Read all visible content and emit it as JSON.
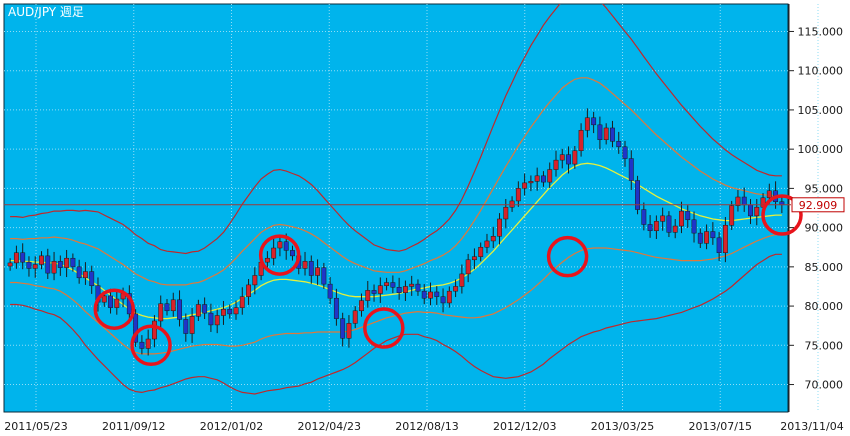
{
  "chart_data": {
    "type": "candlestick",
    "title": "AUD/JPY  週足",
    "ylim": [
      66.5,
      118.5
    ],
    "y_ticks": [
      "115.000",
      "110.000",
      "105.000",
      "100.000",
      "95.000",
      "90.000",
      "85.000",
      "80.000",
      "75.000",
      "70.000"
    ],
    "y_tick_values": [
      115,
      110,
      105,
      100,
      95,
      90,
      85,
      80,
      75,
      70
    ],
    "x_ticks": [
      "2011/05/23",
      "2011/09/12",
      "2012/01/02",
      "2012/04/23",
      "2012/08/13",
      "2012/12/03",
      "2013/03/25",
      "2013/07/15",
      "2013/11/04"
    ],
    "last_price": 92.909,
    "last_price_label": "92.909",
    "grid": true,
    "colors": {
      "background": "#00b4ec",
      "up": "#d8232a",
      "down": "#1f35c8",
      "middle_band": "#e6f03c",
      "inner_band": "#e0783a",
      "outer_band": "#c0282a",
      "price_line": "#9a3a3a",
      "circle": "#e8141c"
    },
    "series": [
      {
        "name": "",
        "values": [],
        "kind": "candles"
      }
    ],
    "candles_close": [
      85.5,
      86.8,
      85.6,
      84.8,
      85.3,
      86.4,
      84.2,
      85.7,
      84.9,
      86.1,
      85.0,
      83.6,
      84.4,
      82.6,
      80.5,
      81.3,
      79.8,
      80.9,
      81.6,
      79.0,
      75.4,
      74.6,
      75.8,
      78.1,
      80.3,
      79.4,
      80.8,
      78.3,
      76.5,
      78.7,
      80.2,
      79.1,
      77.6,
      78.8,
      79.6,
      79.0,
      79.8,
      81.2,
      82.7,
      83.9,
      85.6,
      86.1,
      87.4,
      88.2,
      87.1,
      86.4,
      84.8,
      85.7,
      83.9,
      84.9,
      82.8,
      81.0,
      78.4,
      75.9,
      77.8,
      79.4,
      80.7,
      82.0,
      81.6,
      82.6,
      83.0,
      82.4,
      81.7,
      82.5,
      82.8,
      81.9,
      81.0,
      81.8,
      81.2,
      80.4,
      81.9,
      82.5,
      84.1,
      85.9,
      86.3,
      87.5,
      88.3,
      88.9,
      91.1,
      92.6,
      93.4,
      95.0,
      95.7,
      95.9,
      96.6,
      95.8,
      97.4,
      98.6,
      99.3,
      98.1,
      99.8,
      102.4,
      104.0,
      103.1,
      101.2,
      102.7,
      101.0,
      100.3,
      98.8,
      96.0,
      92.3,
      90.4,
      89.6,
      90.8,
      91.5,
      89.4,
      90.2,
      92.1,
      91.0,
      89.3,
      88.0,
      89.5,
      88.7,
      86.8,
      90.3,
      92.8,
      93.9,
      92.9,
      91.5,
      92.6,
      93.8,
      94.7,
      93.3,
      92.909
    ],
    "bollinger_mid": [
      85.8,
      85.8,
      85.7,
      85.7,
      85.6,
      85.6,
      85.5,
      85.5,
      85.3,
      85.0,
      84.6,
      84.1,
      83.6,
      83.1,
      82.6,
      82.0,
      81.4,
      80.8,
      80.2,
      79.6,
      79.1,
      78.8,
      78.6,
      78.5,
      78.4,
      78.4,
      78.5,
      78.6,
      78.7,
      78.9,
      79.0,
      79.2,
      79.4,
      79.6,
      79.8,
      80.1,
      80.5,
      81.0,
      81.5,
      82.0,
      82.6,
      83.0,
      83.3,
      83.4,
      83.4,
      83.3,
      83.2,
      83.1,
      82.9,
      82.7,
      82.4,
      82.1,
      81.8,
      81.5,
      81.3,
      81.2,
      81.2,
      81.2,
      81.2,
      81.3,
      81.4,
      81.5,
      81.6,
      81.8,
      82.0,
      82.2,
      82.3,
      82.5,
      82.6,
      82.7,
      82.9,
      83.2,
      83.6,
      84.1,
      84.7,
      85.4,
      86.2,
      87.0,
      87.9,
      88.8,
      89.7,
      90.6,
      91.5,
      92.4,
      93.3,
      94.2,
      95.1,
      95.9,
      96.7,
      97.3,
      97.8,
      98.1,
      98.2,
      98.1,
      97.9,
      97.6,
      97.2,
      96.8,
      96.4,
      96.0,
      95.5,
      95.0,
      94.5,
      94.0,
      93.6,
      93.2,
      92.8,
      92.4,
      92.1,
      91.8,
      91.5,
      91.3,
      91.1,
      91.0,
      90.9,
      90.9,
      91.0,
      91.1,
      91.2,
      91.3,
      91.4,
      91.5,
      91.6,
      91.6
    ],
    "bollinger_band_width_1": [
      2.8,
      2.8,
      2.8,
      2.9,
      3.0,
      3.1,
      3.2,
      3.3,
      3.4,
      3.6,
      3.8,
      4.0,
      4.3,
      4.5,
      4.7,
      4.8,
      4.9,
      5.0,
      5.1,
      5.1,
      5.0,
      4.9,
      4.7,
      4.6,
      4.4,
      4.3,
      4.2,
      4.1,
      4.0,
      4.0,
      4.0,
      4.1,
      4.3,
      4.5,
      4.8,
      5.2,
      5.6,
      6.0,
      6.3,
      6.6,
      6.8,
      6.9,
      7.0,
      7.0,
      6.9,
      6.8,
      6.7,
      6.5,
      6.3,
      6.0,
      5.7,
      5.4,
      5.1,
      4.8,
      4.5,
      4.2,
      3.9,
      3.6,
      3.3,
      3.1,
      2.9,
      2.8,
      2.7,
      2.7,
      2.8,
      2.9,
      3.1,
      3.3,
      3.5,
      3.8,
      4.1,
      4.5,
      5.0,
      5.6,
      6.2,
      6.8,
      7.4,
      8.0,
      8.5,
      9.0,
      9.4,
      9.8,
      10.1,
      10.4,
      10.6,
      10.8,
      10.9,
      11.0,
      11.1,
      11.1,
      11.1,
      11.0,
      10.9,
      10.7,
      10.5,
      10.2,
      9.9,
      9.6,
      9.3,
      9.0,
      8.7,
      8.4,
      8.1,
      7.8,
      7.5,
      7.2,
      6.9,
      6.6,
      6.3,
      6.0,
      5.7,
      5.4,
      5.1,
      4.8,
      4.5,
      4.2,
      3.9,
      3.6,
      3.3,
      3.0,
      2.8,
      2.6,
      2.5,
      2.5
    ],
    "highlight_circles": [
      {
        "x_index": 17,
        "y": 79.6
      },
      {
        "x_index": 23,
        "y": 75.0
      },
      {
        "x_index": 44,
        "y": 86.5
      },
      {
        "x_index": 61,
        "y": 77.2
      },
      {
        "x_index": 91,
        "y": 86.3
      },
      {
        "x_index": 126,
        "y": 91.6
      }
    ]
  }
}
